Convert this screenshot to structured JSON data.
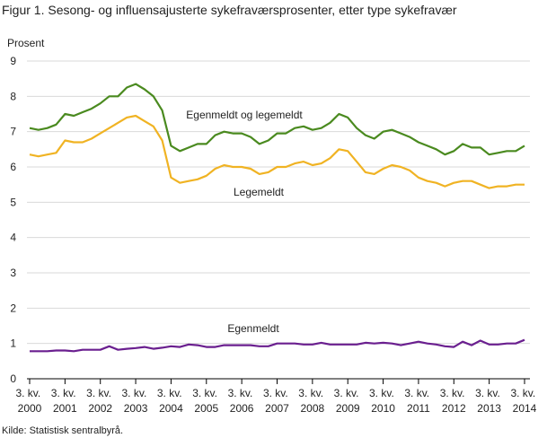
{
  "chart_data": {
    "type": "line",
    "title": "Figur 1. Sesong- og influensajusterte sykefraværsprosenter, etter type sykefravær",
    "y_label": "Prosent",
    "source": "Kilde: Statistisk sentralbyrå.",
    "categories": [
      "3. kv. 2000",
      null,
      null,
      null,
      "3. kv. 2001",
      null,
      null,
      null,
      "3. kv. 2002",
      null,
      null,
      null,
      "3. kv. 2003",
      null,
      null,
      null,
      "3. kv. 2004",
      null,
      null,
      null,
      "3. kv. 2005",
      null,
      null,
      null,
      "3. kv. 2006",
      null,
      null,
      null,
      "3. kv. 2007",
      null,
      null,
      null,
      "3. kv. 2008",
      null,
      null,
      null,
      "3. kv. 2009",
      null,
      null,
      null,
      "3. kv. 2010",
      null,
      null,
      null,
      "3. kv. 2011",
      null,
      null,
      null,
      "3. kv. 2012",
      null,
      null,
      null,
      "3. kv. 2013",
      null,
      null,
      null,
      "3. kv. 2014"
    ],
    "series": [
      {
        "name": "Egenmeldt og legemeldt",
        "color": "#4a8a1f",
        "values": [
          7.1,
          7.05,
          7.1,
          7.2,
          7.5,
          7.45,
          7.55,
          7.65,
          7.8,
          8.0,
          8.0,
          8.25,
          8.35,
          8.2,
          8.0,
          7.6,
          6.6,
          6.45,
          6.55,
          6.65,
          6.65,
          6.9,
          7.0,
          6.95,
          6.95,
          6.85,
          6.65,
          6.75,
          6.95,
          6.95,
          7.1,
          7.15,
          7.05,
          7.1,
          7.25,
          7.5,
          7.4,
          7.1,
          6.9,
          6.8,
          7.0,
          7.05,
          6.95,
          6.85,
          6.7,
          6.6,
          6.5,
          6.35,
          6.45,
          6.65,
          6.55,
          6.55,
          6.35,
          6.4,
          6.45,
          6.45,
          6.6
        ]
      },
      {
        "name": "Legemeldt",
        "color": "#f0b323",
        "values": [
          6.35,
          6.3,
          6.35,
          6.4,
          6.75,
          6.7,
          6.7,
          6.8,
          6.95,
          7.1,
          7.25,
          7.4,
          7.45,
          7.3,
          7.15,
          6.75,
          5.7,
          5.55,
          5.6,
          5.65,
          5.75,
          5.95,
          6.05,
          6.0,
          6.0,
          5.95,
          5.8,
          5.85,
          6.0,
          6.0,
          6.1,
          6.15,
          6.05,
          6.1,
          6.25,
          6.5,
          6.45,
          6.15,
          5.85,
          5.8,
          5.95,
          6.05,
          6.0,
          5.9,
          5.7,
          5.6,
          5.55,
          5.45,
          5.55,
          5.6,
          5.6,
          5.5,
          5.4,
          5.45,
          5.45,
          5.5,
          5.5
        ]
      },
      {
        "name": "Egenmeldt",
        "color": "#6a1f8f",
        "values": [
          0.78,
          0.78,
          0.78,
          0.8,
          0.8,
          0.78,
          0.82,
          0.82,
          0.82,
          0.92,
          0.82,
          0.85,
          0.87,
          0.9,
          0.85,
          0.88,
          0.92,
          0.9,
          0.97,
          0.95,
          0.9,
          0.9,
          0.95,
          0.95,
          0.95,
          0.95,
          0.92,
          0.92,
          1.0,
          1.0,
          1.0,
          0.97,
          0.97,
          1.02,
          0.97,
          0.97,
          0.97,
          0.97,
          1.02,
          1.0,
          1.02,
          1.0,
          0.95,
          1.0,
          1.05,
          1.0,
          0.97,
          0.92,
          0.9,
          1.05,
          0.95,
          1.08,
          0.97,
          0.97,
          1.0,
          1.0,
          1.1
        ]
      }
    ],
    "ylim": [
      0,
      9
    ],
    "yticks": [
      0,
      1,
      2,
      3,
      4,
      5,
      6,
      7,
      8,
      9
    ],
    "grid": true
  }
}
